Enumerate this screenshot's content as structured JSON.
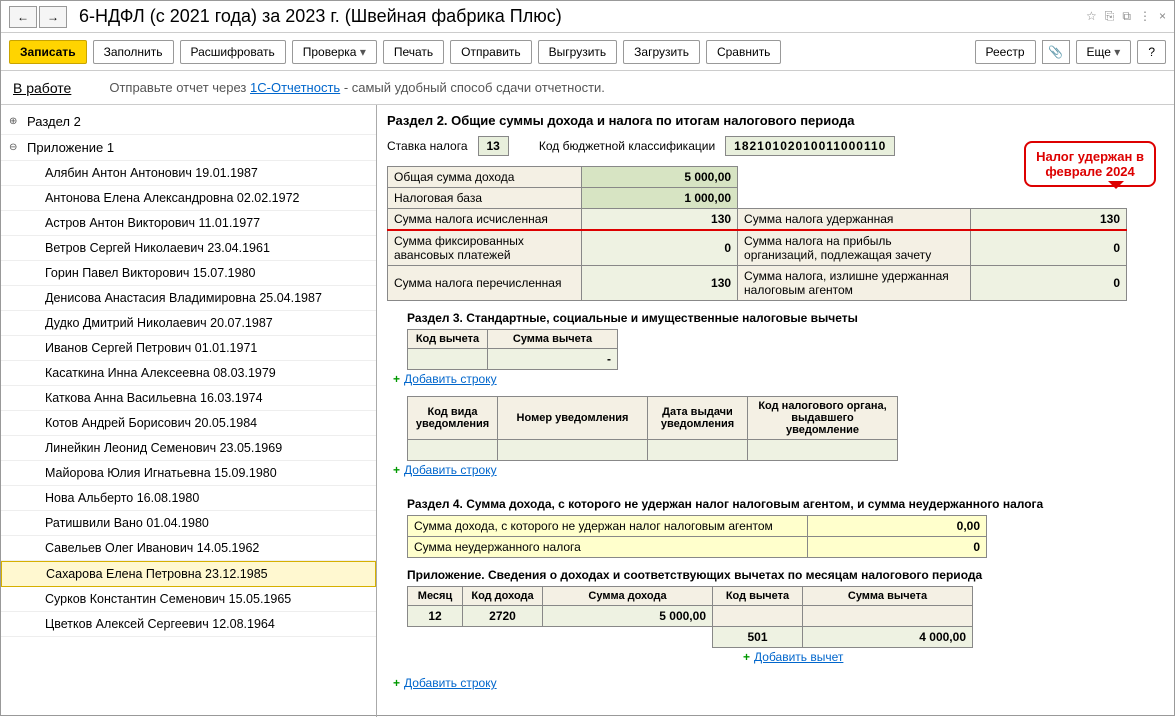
{
  "title": "6-НДФЛ (с 2021 года) за 2023 г. (Швейная фабрика Плюс)",
  "nav": {
    "back": "←",
    "fwd": "→"
  },
  "title_icons": [
    "☆",
    "⎘",
    "⧉",
    "⋮",
    "×"
  ],
  "toolbar": {
    "save": "Записать",
    "fill": "Заполнить",
    "decode": "Расшифровать",
    "check": "Проверка",
    "print": "Печать",
    "send": "Отправить",
    "export": "Выгрузить",
    "import": "Загрузить",
    "compare": "Сравнить",
    "registry": "Реестр",
    "more": "Еще",
    "help": "?"
  },
  "info": {
    "status": "В работе",
    "text1": "Отправьте отчет через ",
    "link": "1С-Отчетность",
    "text2": " - самый удобный способ сдачи отчетности."
  },
  "tree": {
    "section2": "Раздел 2",
    "appendix1": "Приложение 1",
    "people": [
      "Алябин Антон Антонович 19.01.1987",
      "Антонова Елена Александровна 02.02.1972",
      "Астров Антон Викторович 11.01.1977",
      "Ветров Сергей Николаевич 23.04.1961",
      "Горин Павел Викторович 15.07.1980",
      "Денисова Анастасия Владимировна 25.04.1987",
      "Дудко Дмитрий Николаевич 20.07.1987",
      "Иванов Сергей Петрович 01.01.1971",
      "Касаткина Инна Алексеевна 08.03.1979",
      "Каткова Анна Васильевна 16.03.1974",
      "Котов Андрей Борисович 20.05.1984",
      "Линейкин Леонид Семенович 23.05.1969",
      "Майорова Юлия Игнатьевна 15.09.1980",
      "Нова Альберто 16.08.1980",
      "Ратишвили Вано 01.04.1980",
      "Савельев Олег Иванович 14.05.1962",
      "Сахарова Елена Петровна 23.12.1985",
      "Сурков Константин Семенович 15.05.1965",
      "Цветков Алексей Сергеевич 12.08.1964"
    ],
    "selected_index": 16
  },
  "content": {
    "sec2_title": "Раздел 2. Общие суммы дохода и налога по итогам налогового периода",
    "rate_label": "Ставка налога",
    "rate_value": "13",
    "kbk_label": "Код бюджетной классификации",
    "kbk_value": "18210102010011000110",
    "callout_l1": "Налог удержан в",
    "callout_l2": "феврале 2024",
    "rows_left": [
      {
        "label": "Общая сумма дохода",
        "value": "5 000,00"
      },
      {
        "label": "Налоговая база",
        "value": "1 000,00"
      },
      {
        "label": "Сумма налога исчисленная",
        "value": "130"
      },
      {
        "label": "Сумма фиксированных авансовых платежей",
        "value": "0"
      },
      {
        "label": "Сумма налога перечисленная",
        "value": "130"
      }
    ],
    "rows_right": [
      {
        "label": "Сумма налога удержанная",
        "value": "130"
      },
      {
        "label": "Сумма налога на прибыль организаций, подлежащая зачету",
        "value": "0"
      },
      {
        "label": "Сумма налога, излишне удержанная налоговым агентом",
        "value": "0"
      }
    ],
    "sec3_title": "Раздел 3. Стандартные, социальные и имущественные налоговые вычеты",
    "t3_h1": "Код вычета",
    "t3_h2": "Сумма вычета",
    "add_row": "Добавить строку",
    "t3b_h1": "Код вида уведомления",
    "t3b_h2": "Номер уведомления",
    "t3b_h3": "Дата выдачи уведомления",
    "t3b_h4": "Код налогового органа, выдавшего уведомление",
    "sec4_title": "Раздел 4. Сумма дохода, с которого не удержан налог налоговым агентом, и сумма неудержанного налога",
    "t4_r1": "Сумма дохода, с которого не удержан налог налоговым агентом",
    "t4_r1v": "0,00",
    "t4_r2": "Сумма неудержанного налога",
    "t4_r2v": "0",
    "app_title": "Приложение. Сведения о доходах и соответствующих вычетах по месяцам налогового периода",
    "app_h": [
      "Месяц",
      "Код дохода",
      "Сумма дохода",
      "Код вычета",
      "Сумма вычета"
    ],
    "app_row": [
      "12",
      "2720",
      "5 000,00",
      "",
      ""
    ],
    "app_row2": [
      "",
      "",
      "",
      "501",
      "4 000,00"
    ],
    "add_deduction": "Добавить вычет"
  }
}
